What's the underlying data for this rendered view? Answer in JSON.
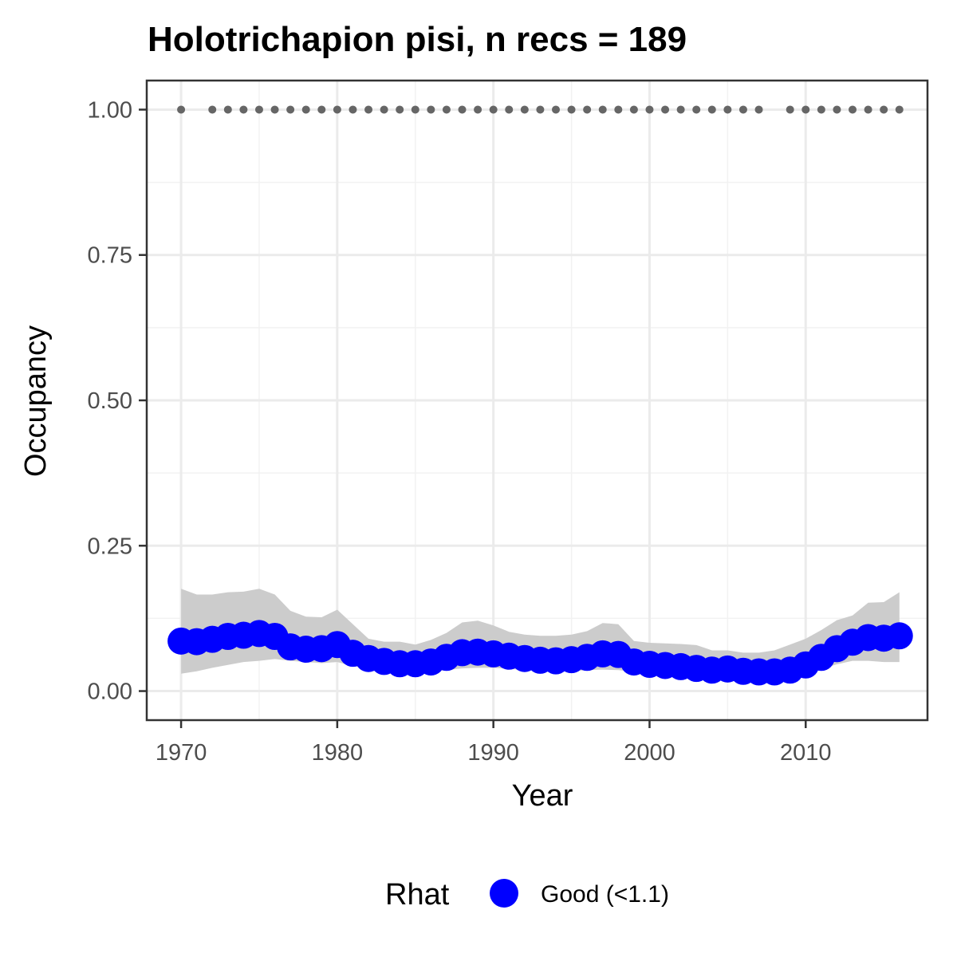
{
  "chart_data": {
    "type": "line",
    "title": "Holotrichapion pisi, n recs = 189",
    "xlabel": "Year",
    "ylabel": "Occupancy",
    "xlim": [
      1967.8,
      2017.8
    ],
    "ylim": [
      -0.05,
      1.05
    ],
    "x_ticks": [
      1970,
      1980,
      1990,
      2000,
      2010
    ],
    "x_tick_labels": [
      "1970",
      "1980",
      "1990",
      "2000",
      "2010"
    ],
    "y_ticks": [
      0,
      0.25,
      0.5,
      0.75,
      1.0
    ],
    "y_tick_labels": [
      "0.00",
      "0.25",
      "0.50",
      "0.75",
      "1.00"
    ],
    "grid": true,
    "legend_position": "bottom",
    "x": [
      1970,
      1971,
      1972,
      1973,
      1974,
      1975,
      1976,
      1977,
      1978,
      1979,
      1980,
      1981,
      1982,
      1983,
      1984,
      1985,
      1986,
      1987,
      1988,
      1989,
      1990,
      1991,
      1992,
      1993,
      1994,
      1995,
      1996,
      1997,
      1998,
      1999,
      2000,
      2001,
      2002,
      2003,
      2004,
      2005,
      2006,
      2007,
      2008,
      2009,
      2010,
      2011,
      2012,
      2013,
      2014,
      2015,
      2016
    ],
    "series": [
      {
        "name": "Good (<1.1)",
        "color": "#0000ff",
        "values": [
          0.086,
          0.085,
          0.089,
          0.094,
          0.096,
          0.099,
          0.094,
          0.076,
          0.072,
          0.073,
          0.08,
          0.065,
          0.056,
          0.051,
          0.047,
          0.047,
          0.05,
          0.058,
          0.066,
          0.067,
          0.064,
          0.06,
          0.056,
          0.053,
          0.052,
          0.054,
          0.058,
          0.064,
          0.063,
          0.05,
          0.046,
          0.044,
          0.042,
          0.039,
          0.036,
          0.038,
          0.034,
          0.033,
          0.033,
          0.036,
          0.045,
          0.058,
          0.073,
          0.084,
          0.092,
          0.091,
          0.095
        ],
        "lower": [
          0.03,
          0.034,
          0.04,
          0.045,
          0.05,
          0.052,
          0.055,
          0.052,
          0.05,
          0.048,
          0.05,
          0.043,
          0.038,
          0.035,
          0.033,
          0.033,
          0.033,
          0.036,
          0.039,
          0.04,
          0.04,
          0.038,
          0.036,
          0.035,
          0.034,
          0.034,
          0.036,
          0.037,
          0.036,
          0.033,
          0.03,
          0.029,
          0.028,
          0.027,
          0.026,
          0.026,
          0.025,
          0.024,
          0.023,
          0.026,
          0.03,
          0.038,
          0.046,
          0.052,
          0.052,
          0.05,
          0.05
        ],
        "upper": [
          0.176,
          0.166,
          0.166,
          0.17,
          0.171,
          0.176,
          0.166,
          0.138,
          0.128,
          0.127,
          0.14,
          0.115,
          0.09,
          0.085,
          0.085,
          0.08,
          0.088,
          0.1,
          0.118,
          0.121,
          0.113,
          0.102,
          0.097,
          0.095,
          0.095,
          0.097,
          0.103,
          0.117,
          0.115,
          0.086,
          0.083,
          0.082,
          0.081,
          0.079,
          0.07,
          0.07,
          0.066,
          0.066,
          0.07,
          0.08,
          0.09,
          0.105,
          0.122,
          0.13,
          0.152,
          0.153,
          0.17
        ]
      }
    ],
    "records_dots": {
      "y": 1.0,
      "color": "#666666",
      "x": [
        1970,
        1972,
        1973,
        1974,
        1975,
        1976,
        1977,
        1978,
        1979,
        1980,
        1981,
        1982,
        1983,
        1984,
        1985,
        1986,
        1987,
        1988,
        1989,
        1990,
        1991,
        1992,
        1993,
        1994,
        1995,
        1996,
        1997,
        1998,
        1999,
        2000,
        2001,
        2002,
        2003,
        2004,
        2005,
        2006,
        2007,
        2009,
        2010,
        2011,
        2012,
        2013,
        2014,
        2015,
        2016
      ]
    },
    "ribbon_color": "#cccccc",
    "legend": {
      "title": "Rhat",
      "items": [
        {
          "label": "Good (<1.1)",
          "color": "#0000ff"
        }
      ]
    }
  }
}
